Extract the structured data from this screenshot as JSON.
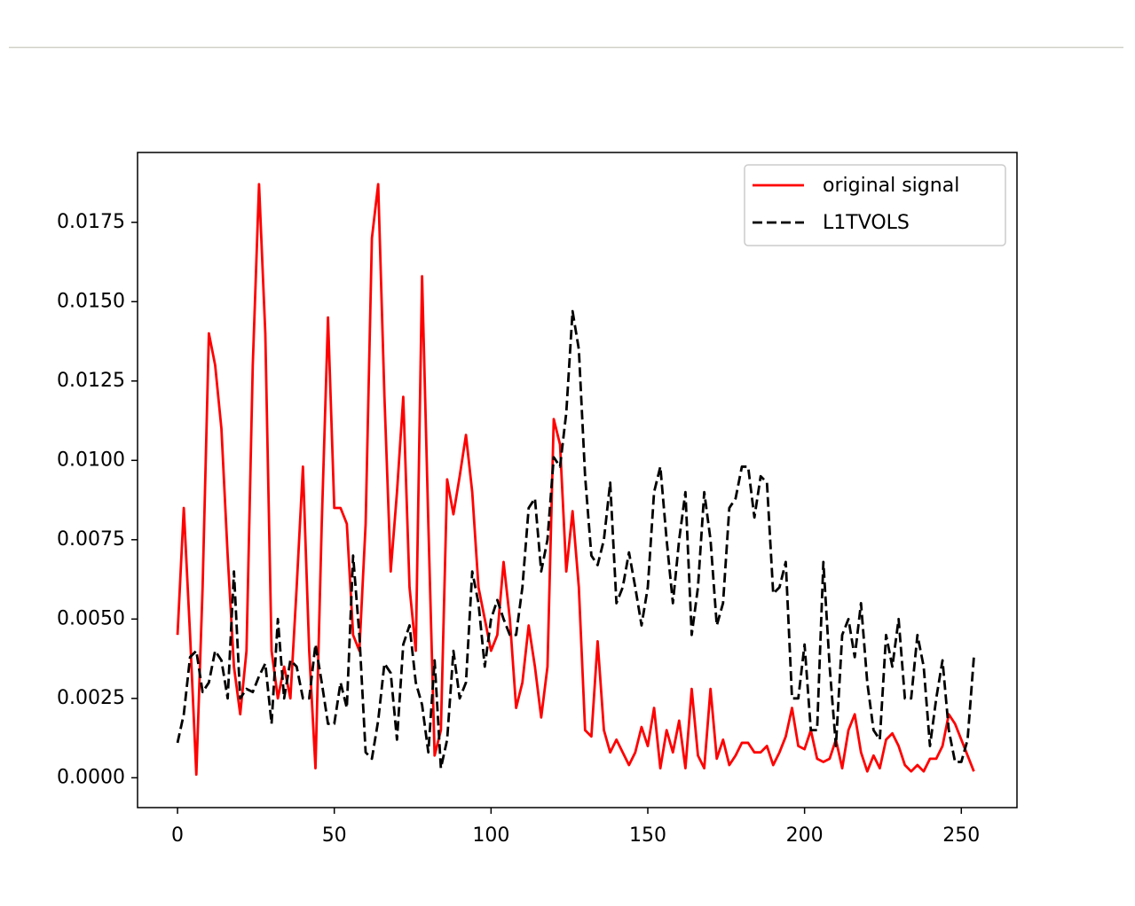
{
  "chart_data": {
    "type": "line",
    "x": [
      0,
      2,
      4,
      6,
      8,
      10,
      12,
      14,
      16,
      18,
      20,
      22,
      24,
      26,
      28,
      30,
      32,
      34,
      36,
      38,
      40,
      42,
      44,
      46,
      48,
      50,
      52,
      54,
      56,
      58,
      60,
      62,
      64,
      66,
      68,
      70,
      72,
      74,
      76,
      78,
      80,
      82,
      84,
      86,
      88,
      90,
      92,
      94,
      96,
      98,
      100,
      102,
      104,
      106,
      108,
      110,
      112,
      114,
      116,
      118,
      120,
      122,
      124,
      126,
      128,
      130,
      132,
      134,
      136,
      138,
      140,
      142,
      144,
      146,
      148,
      150,
      152,
      154,
      156,
      158,
      160,
      162,
      164,
      166,
      168,
      170,
      172,
      174,
      176,
      178,
      180,
      182,
      184,
      186,
      188,
      190,
      192,
      194,
      196,
      198,
      200,
      202,
      204,
      206,
      208,
      210,
      212,
      214,
      216,
      218,
      220,
      222,
      224,
      226,
      228,
      230,
      232,
      234,
      236,
      238,
      240,
      242,
      244,
      246,
      248,
      250,
      252,
      254
    ],
    "series": [
      {
        "name": "original signal",
        "color": "red",
        "style": "solid",
        "values": [
          0.0045,
          0.0085,
          0.0045,
          0.0001,
          0.006,
          0.014,
          0.013,
          0.011,
          0.007,
          0.0035,
          0.002,
          0.004,
          0.013,
          0.0187,
          0.014,
          0.004,
          0.0025,
          0.0035,
          0.0025,
          0.006,
          0.0098,
          0.004,
          0.0003,
          0.008,
          0.0145,
          0.0085,
          0.0085,
          0.008,
          0.0045,
          0.004,
          0.008,
          0.017,
          0.0187,
          0.012,
          0.0065,
          0.009,
          0.012,
          0.006,
          0.004,
          0.0158,
          0.008,
          0.0007,
          0.0015,
          0.0094,
          0.0083,
          0.0095,
          0.0108,
          0.009,
          0.006,
          0.005,
          0.004,
          0.0045,
          0.0068,
          0.005,
          0.0022,
          0.003,
          0.0048,
          0.0035,
          0.0019,
          0.0035,
          0.0113,
          0.0105,
          0.0065,
          0.0084,
          0.006,
          0.0015,
          0.0013,
          0.0043,
          0.0015,
          0.0008,
          0.0012,
          0.0008,
          0.0004,
          0.0008,
          0.0016,
          0.001,
          0.0022,
          0.0003,
          0.0015,
          0.0008,
          0.0018,
          0.0003,
          0.0028,
          0.0007,
          0.0003,
          0.0028,
          0.0006,
          0.0012,
          0.0004,
          0.0007,
          0.0011,
          0.0011,
          0.0008,
          0.0008,
          0.001,
          0.0004,
          0.0008,
          0.0013,
          0.0022,
          0.001,
          0.0009,
          0.0015,
          0.0006,
          0.0005,
          0.0006,
          0.0012,
          0.0003,
          0.0015,
          0.002,
          0.0008,
          0.0002,
          0.0007,
          0.0003,
          0.0012,
          0.0014,
          0.001,
          0.0004,
          0.0002,
          0.0004,
          0.0002,
          0.0006,
          0.0006,
          0.001,
          0.002,
          0.0017,
          0.0012,
          0.0007,
          0.0002
        ]
      },
      {
        "name": "L1TVOLS",
        "color": "black",
        "style": "dashed",
        "values": [
          0.0011,
          0.002,
          0.0038,
          0.004,
          0.0027,
          0.003,
          0.004,
          0.0037,
          0.0025,
          0.0065,
          0.0025,
          0.0028,
          0.0027,
          0.0032,
          0.0036,
          0.0017,
          0.005,
          0.0025,
          0.0037,
          0.0035,
          0.0025,
          0.0025,
          0.0042,
          0.003,
          0.0017,
          0.0017,
          0.003,
          0.0022,
          0.007,
          0.0045,
          0.0008,
          0.0006,
          0.0018,
          0.0036,
          0.0033,
          0.0012,
          0.0042,
          0.0048,
          0.003,
          0.0023,
          0.0008,
          0.0037,
          0.0003,
          0.0012,
          0.004,
          0.0025,
          0.003,
          0.0065,
          0.0055,
          0.0035,
          0.005,
          0.0056,
          0.005,
          0.0045,
          0.0045,
          0.006,
          0.0085,
          0.0088,
          0.0065,
          0.0075,
          0.0101,
          0.0098,
          0.0115,
          0.0147,
          0.0135,
          0.0095,
          0.007,
          0.0067,
          0.0075,
          0.0093,
          0.0055,
          0.006,
          0.0071,
          0.006,
          0.0048,
          0.006,
          0.009,
          0.0098,
          0.0075,
          0.0055,
          0.0075,
          0.009,
          0.0045,
          0.006,
          0.009,
          0.0075,
          0.0048,
          0.0055,
          0.0085,
          0.0088,
          0.0098,
          0.0098,
          0.0082,
          0.0095,
          0.0093,
          0.0058,
          0.006,
          0.0068,
          0.0025,
          0.0025,
          0.0042,
          0.0015,
          0.0015,
          0.0068,
          0.0035,
          0.001,
          0.0045,
          0.005,
          0.0038,
          0.0055,
          0.003,
          0.0015,
          0.0012,
          0.0045,
          0.0035,
          0.005,
          0.0025,
          0.0025,
          0.0045,
          0.0035,
          0.001,
          0.0025,
          0.0037,
          0.0015,
          0.0005,
          0.0005,
          0.0012,
          0.0038
        ]
      }
    ],
    "xlim": [
      -12.75,
      267.75
    ],
    "ylim": [
      -0.00094,
      0.0197
    ],
    "xticks": [
      0,
      50,
      100,
      150,
      200,
      250
    ],
    "yticks": [
      {
        "value": 0,
        "label": "0.0000"
      },
      0.0025,
      {
        "value": 0.005,
        "label": "0.0050"
      },
      0.0075,
      {
        "value": 0.01,
        "label": "0.0100"
      },
      0.0125,
      {
        "value": 0.015,
        "label": "0.0150"
      },
      0.0175
    ],
    "legend": "upper right",
    "grid": false
  }
}
